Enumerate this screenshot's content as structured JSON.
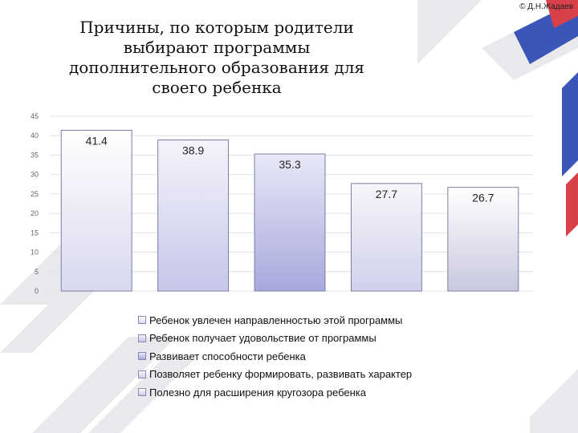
{
  "copyright": "© Д.Н.Жадаев",
  "colors": {
    "accent_blue": "#3b56b8",
    "accent_red": "#d8404a",
    "decor_gray": "#e6e6ea"
  },
  "chart_data": {
    "type": "bar",
    "title": "Причины, по которым родители выбирают программы дополнительного образования для своего ребенка",
    "xlabel": "",
    "ylabel": "",
    "ylim": [
      0,
      45
    ],
    "yticks": [
      0,
      5,
      10,
      15,
      20,
      25,
      30,
      35,
      40,
      45
    ],
    "grid": true,
    "legend_position": "bottom",
    "bar_colors": [
      [
        "#ffffff",
        "#d8d8ef"
      ],
      [
        "#f4f4fb",
        "#c6c6e9"
      ],
      [
        "#e8e8f7",
        "#a8a8dd"
      ],
      [
        "#f6f6fb",
        "#d0d0ea"
      ],
      [
        "#ffffff",
        "#c8c8de"
      ]
    ],
    "series": [
      {
        "name": "Ребенок увлечен направленностью этой программы",
        "values": [
          41.4
        ],
        "label": "41.4"
      },
      {
        "name": "Ребенок получает удовольствие от программы",
        "values": [
          38.9
        ],
        "label": "38.9"
      },
      {
        "name": "Развивает способности ребенка",
        "values": [
          35.3
        ],
        "label": "35.3"
      },
      {
        "name": "Позволяет ребенку формировать, развивать характер",
        "values": [
          27.7
        ],
        "label": "27.7"
      },
      {
        "name": "Полезно для расширения кругозора ребенка",
        "values": [
          26.7
        ],
        "label": "26.7"
      }
    ]
  }
}
